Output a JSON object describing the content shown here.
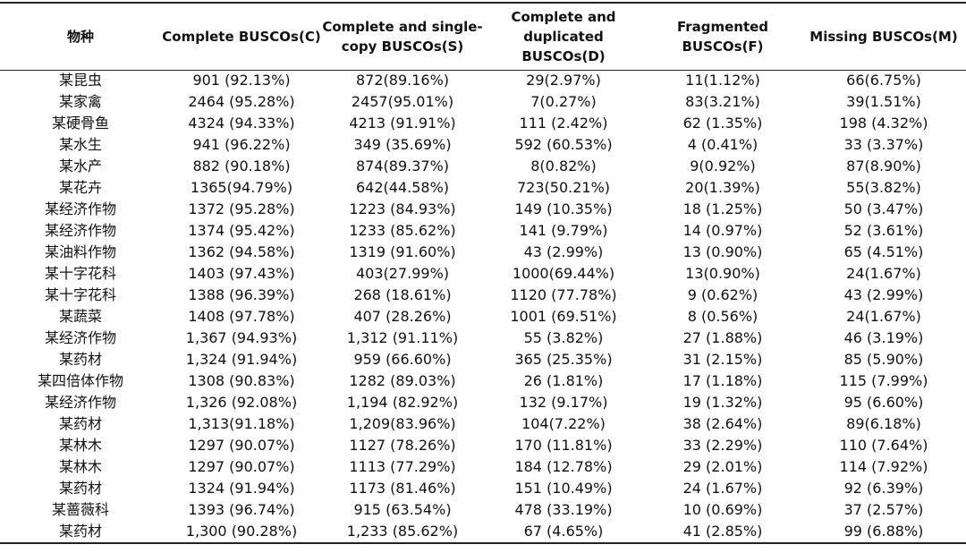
{
  "table": {
    "header": [
      [
        "物种"
      ],
      [
        "Complete BUSCOs(C)"
      ],
      [
        "Complete and single-",
        "copy BUSCOs(S)"
      ],
      [
        "Complete and",
        "duplicated",
        "BUSCOs(D)"
      ],
      [
        "Fragmented",
        "BUSCOs(F)"
      ],
      [
        "Missing BUSCOs(M)"
      ]
    ],
    "rows": [
      [
        "某昆虫",
        "901 (92.13%)",
        "872(89.16%)",
        "29(2.97%)",
        "11(1.12%)",
        "66(6.75%)"
      ],
      [
        "某家禽",
        "2464 (95.28%)",
        "2457(95.01%)",
        "7(0.27%)",
        "83(3.21%)",
        "39(1.51%)"
      ],
      [
        "某硬骨鱼",
        "4324 (94.33%)",
        "4213 (91.91%)",
        "111 (2.42%)",
        "62 (1.35%)",
        "198 (4.32%)"
      ],
      [
        "某水生",
        "941 (96.22%)",
        "349 (35.69%)",
        "592 (60.53%)",
        "4 (0.41%)",
        "33 (3.37%)"
      ],
      [
        "某水产",
        "882 (90.18%)",
        "874(89.37%)",
        "8(0.82%)",
        "9(0.92%)",
        "87(8.90%)"
      ],
      [
        "某花卉",
        "1365(94.79%)",
        "642(44.58%)",
        "723(50.21%)",
        "20(1.39%)",
        "55(3.82%)"
      ],
      [
        "某经济作物",
        "1372 (95.28%)",
        "1223 (84.93%)",
        "149 (10.35%)",
        "18 (1.25%)",
        "50 (3.47%)"
      ],
      [
        "某经济作物",
        "1374 (95.42%)",
        "1233 (85.62%)",
        "141 (9.79%)",
        "14 (0.97%)",
        "52 (3.61%)"
      ],
      [
        "某油料作物",
        "1362 (94.58%)",
        "1319 (91.60%)",
        "43 (2.99%)",
        "13 (0.90%)",
        "65 (4.51%)"
      ],
      [
        "某十字花科",
        "1403 (97.43%)",
        "403(27.99%)",
        "1000(69.44%)",
        "13(0.90%)",
        "24(1.67%)"
      ],
      [
        "某十字花科",
        "1388 (96.39%)",
        "268 (18.61%)",
        "1120 (77.78%)",
        "9 (0.62%)",
        "43 (2.99%)"
      ],
      [
        "某蔬菜",
        "1408 (97.78%)",
        "407 (28.26%)",
        "1001 (69.51%)",
        "8 (0.56%)",
        "24(1.67%)"
      ],
      [
        "某经济作物",
        "1,367 (94.93%)",
        "1,312 (91.11%)",
        "55 (3.82%)",
        "27 (1.88%)",
        "46 (3.19%)"
      ],
      [
        "某药材",
        "1,324 (91.94%)",
        "959 (66.60%)",
        "365 (25.35%)",
        "31 (2.15%)",
        "85 (5.90%)"
      ],
      [
        "某四倍体作物",
        "1308 (90.83%)",
        "1282 (89.03%)",
        "26 (1.81%)",
        "17 (1.18%)",
        "115 (7.99%)"
      ],
      [
        "某经济作物",
        "1,326 (92.08%)",
        "1,194 (82.92%)",
        "132 (9.17%)",
        "19 (1.32%)",
        "95 (6.60%)"
      ],
      [
        "某药材",
        "1,313(91.18%)",
        "1,209(83.96%)",
        "104(7.22%)",
        "38 (2.64%)",
        "89(6.18%)"
      ],
      [
        "某林木",
        "1297 (90.07%)",
        "1127 (78.26%)",
        "170 (11.81%)",
        "33 (2.29%)",
        "110 (7.64%)"
      ],
      [
        "某林木",
        "1297 (90.07%)",
        "1113 (77.29%)",
        "184 (12.78%)",
        "29 (2.01%)",
        "114 (7.92%)"
      ],
      [
        "某药材",
        "1324 (91.94%)",
        "1173 (81.46%)",
        "151 (10.49%)",
        "24 (1.67%)",
        "92 (6.39%)"
      ],
      [
        "某蔷薇科",
        "1393 (96.74%)",
        "915 (63.54%)",
        "478 (33.19%)",
        "10 (0.69%)",
        "37 (2.57%)"
      ],
      [
        "某药材",
        "1,300 (90.28%)",
        "1,233 (85.62%)",
        "67 (4.65%)",
        "41 (2.85%)",
        "99 (6.88%)"
      ]
    ]
  }
}
